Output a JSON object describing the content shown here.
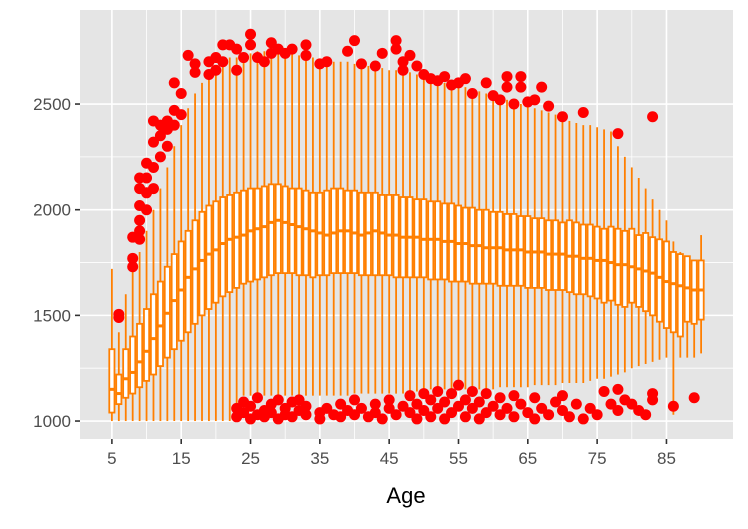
{
  "chart_data": {
    "type": "boxplot",
    "title": "",
    "xlabel": "Age",
    "ylabel": "",
    "xlim": [
      0.4,
      94.6
    ],
    "ylim": [
      915,
      2945
    ],
    "grid": true,
    "x_ticks": [
      5,
      15,
      25,
      35,
      45,
      55,
      65,
      75,
      85
    ],
    "y_ticks": [
      1000,
      1500,
      2000,
      2500
    ],
    "colors": {
      "box": "#FF7F00",
      "outlier": "#FF0000",
      "panel": "#E5E5E5",
      "grid": "#FFFFFF"
    },
    "ages": [
      5,
      6,
      7,
      8,
      9,
      10,
      11,
      12,
      13,
      14,
      15,
      16,
      17,
      18,
      19,
      20,
      21,
      22,
      23,
      24,
      25,
      26,
      27,
      28,
      29,
      30,
      31,
      32,
      33,
      34,
      35,
      36,
      37,
      38,
      39,
      40,
      41,
      42,
      43,
      44,
      45,
      46,
      47,
      48,
      49,
      50,
      51,
      52,
      53,
      54,
      55,
      56,
      57,
      58,
      59,
      60,
      61,
      62,
      63,
      64,
      65,
      66,
      67,
      68,
      69,
      70,
      71,
      72,
      73,
      74,
      75,
      76,
      77,
      78,
      79,
      80,
      81,
      82,
      83,
      84,
      85,
      86,
      87,
      88,
      89,
      90
    ],
    "whisker_low": [
      1000,
      1000,
      1000,
      1000,
      1000,
      1000,
      1000,
      1000,
      1000,
      1000,
      1000,
      1000,
      1000,
      1000,
      1000,
      1000,
      1000,
      1000,
      1080,
      1120,
      1120,
      1120,
      1120,
      1120,
      1120,
      1120,
      1120,
      1120,
      1120,
      1120,
      1120,
      1120,
      1120,
      1120,
      1120,
      1130,
      1130,
      1130,
      1130,
      1130,
      1130,
      1130,
      1130,
      1140,
      1140,
      1150,
      1150,
      1150,
      1150,
      1150,
      1150,
      1150,
      1150,
      1150,
      1150,
      1150,
      1160,
      1160,
      1160,
      1160,
      1160,
      1170,
      1170,
      1170,
      1170,
      1180,
      1180,
      1180,
      1180,
      1190,
      1200,
      1200,
      1210,
      1220,
      1230,
      1250,
      1260,
      1270,
      1280,
      1290,
      1300,
      1030,
      1300,
      1300,
      1300,
      1320
    ],
    "q1": [
      1040,
      1080,
      1110,
      1130,
      1160,
      1190,
      1220,
      1260,
      1300,
      1340,
      1380,
      1420,
      1460,
      1500,
      1530,
      1560,
      1590,
      1610,
      1630,
      1650,
      1660,
      1670,
      1680,
      1690,
      1700,
      1700,
      1700,
      1690,
      1690,
      1680,
      1690,
      1690,
      1700,
      1700,
      1700,
      1700,
      1690,
      1690,
      1690,
      1690,
      1690,
      1680,
      1680,
      1680,
      1680,
      1680,
      1670,
      1670,
      1670,
      1660,
      1660,
      1660,
      1650,
      1650,
      1650,
      1650,
      1640,
      1640,
      1640,
      1640,
      1630,
      1630,
      1630,
      1620,
      1620,
      1620,
      1610,
      1600,
      1600,
      1590,
      1580,
      1560,
      1570,
      1550,
      1540,
      1560,
      1540,
      1520,
      1500,
      1470,
      1440,
      1420,
      1400,
      1470,
      1460,
      1480
    ],
    "median": [
      1150,
      1130,
      1200,
      1230,
      1280,
      1330,
      1390,
      1450,
      1510,
      1570,
      1620,
      1680,
      1720,
      1760,
      1790,
      1810,
      1840,
      1860,
      1870,
      1880,
      1900,
      1910,
      1920,
      1940,
      1950,
      1940,
      1930,
      1920,
      1910,
      1900,
      1890,
      1880,
      1890,
      1900,
      1900,
      1890,
      1880,
      1890,
      1900,
      1890,
      1880,
      1880,
      1870,
      1870,
      1870,
      1860,
      1860,
      1860,
      1850,
      1850,
      1840,
      1840,
      1830,
      1830,
      1820,
      1820,
      1820,
      1810,
      1810,
      1810,
      1800,
      1800,
      1800,
      1790,
      1790,
      1790,
      1780,
      1780,
      1770,
      1770,
      1760,
      1760,
      1750,
      1740,
      1740,
      1730,
      1720,
      1710,
      1700,
      1680,
      1660,
      1650,
      1640,
      1630,
      1620,
      1620
    ],
    "q3": [
      1340,
      1220,
      1340,
      1400,
      1460,
      1530,
      1600,
      1660,
      1730,
      1790,
      1850,
      1900,
      1950,
      1990,
      2020,
      2040,
      2060,
      2070,
      2080,
      2090,
      2100,
      2100,
      2110,
      2120,
      2120,
      2110,
      2100,
      2100,
      2090,
      2080,
      2080,
      2090,
      2100,
      2100,
      2090,
      2090,
      2080,
      2080,
      2080,
      2070,
      2070,
      2070,
      2060,
      2060,
      2050,
      2050,
      2040,
      2040,
      2030,
      2030,
      2020,
      2010,
      2010,
      2000,
      2000,
      1990,
      1990,
      1980,
      1980,
      1970,
      1970,
      1960,
      1960,
      1950,
      1950,
      1940,
      1950,
      1940,
      1930,
      1930,
      1920,
      1910,
      1920,
      1910,
      1900,
      1910,
      1880,
      1890,
      1870,
      1860,
      1850,
      1800,
      1790,
      1780,
      1760,
      1760
    ],
    "whisker_high": [
      1720,
      1420,
      1600,
      1720,
      1800,
      1900,
      2000,
      2100,
      2200,
      2300,
      2400,
      2480,
      2550,
      2600,
      2640,
      2680,
      2700,
      2720,
      2720,
      2730,
      2740,
      2750,
      2750,
      2750,
      2750,
      2740,
      2740,
      2730,
      2720,
      2720,
      2710,
      2700,
      2700,
      2700,
      2700,
      2690,
      2680,
      2680,
      2670,
      2670,
      2660,
      2660,
      2650,
      2650,
      2640,
      2630,
      2620,
      2610,
      2600,
      2600,
      2590,
      2580,
      2570,
      2560,
      2550,
      2540,
      2530,
      2520,
      2510,
      2500,
      2490,
      2480,
      2470,
      2460,
      2450,
      2430,
      2420,
      2410,
      2400,
      2400,
      2390,
      2380,
      2370,
      2300,
      2250,
      2200,
      2150,
      2100,
      2050,
      2000,
      1950,
      1850,
      1800,
      1750,
      1760,
      1880
    ],
    "outliers": [
      [
        6,
        1490
      ],
      [
        6,
        1505
      ],
      [
        8,
        1730
      ],
      [
        8,
        1770
      ],
      [
        8,
        1870
      ],
      [
        9,
        1860
      ],
      [
        9,
        1900
      ],
      [
        9,
        1950
      ],
      [
        9,
        2020
      ],
      [
        9,
        2100
      ],
      [
        9,
        2150
      ],
      [
        10,
        2000
      ],
      [
        10,
        2080
      ],
      [
        10,
        2150
      ],
      [
        10,
        2220
      ],
      [
        11,
        2100
      ],
      [
        11,
        2200
      ],
      [
        11,
        2320
      ],
      [
        11,
        2420
      ],
      [
        12,
        2250
      ],
      [
        12,
        2350
      ],
      [
        12,
        2400
      ],
      [
        13,
        2300
      ],
      [
        13,
        2380
      ],
      [
        13,
        2420
      ],
      [
        14,
        2400
      ],
      [
        14,
        2470
      ],
      [
        14,
        2600
      ],
      [
        15,
        2450
      ],
      [
        15,
        2550
      ],
      [
        16,
        2730
      ],
      [
        17,
        2650
      ],
      [
        17,
        2690
      ],
      [
        19,
        2640
      ],
      [
        19,
        2700
      ],
      [
        20,
        2660
      ],
      [
        20,
        2720
      ],
      [
        21,
        2700
      ],
      [
        21,
        2780
      ],
      [
        22,
        2780
      ],
      [
        23,
        2660
      ],
      [
        23,
        2760
      ],
      [
        24,
        2720
      ],
      [
        25,
        2830
      ],
      [
        25,
        2780
      ],
      [
        26,
        2720
      ],
      [
        27,
        2700
      ],
      [
        28,
        2790
      ],
      [
        28,
        2740
      ],
      [
        29,
        2760
      ],
      [
        30,
        2740
      ],
      [
        31,
        2760
      ],
      [
        33,
        2730
      ],
      [
        33,
        2780
      ],
      [
        35,
        2690
      ],
      [
        36,
        2700
      ],
      [
        39,
        2750
      ],
      [
        40,
        2800
      ],
      [
        41,
        2690
      ],
      [
        43,
        2680
      ],
      [
        44,
        2740
      ],
      [
        46,
        2800
      ],
      [
        46,
        2760
      ],
      [
        47,
        2660
      ],
      [
        47,
        2700
      ],
      [
        48,
        2730
      ],
      [
        49,
        2680
      ],
      [
        50,
        2640
      ],
      [
        51,
        2620
      ],
      [
        52,
        2610
      ],
      [
        53,
        2630
      ],
      [
        54,
        2590
      ],
      [
        55,
        2600
      ],
      [
        56,
        2620
      ],
      [
        57,
        2550
      ],
      [
        59,
        2600
      ],
      [
        60,
        2540
      ],
      [
        61,
        2520
      ],
      [
        62,
        2630
      ],
      [
        62,
        2580
      ],
      [
        63,
        2500
      ],
      [
        64,
        2630
      ],
      [
        64,
        2580
      ],
      [
        65,
        2510
      ],
      [
        66,
        2520
      ],
      [
        67,
        2580
      ],
      [
        68,
        2490
      ],
      [
        70,
        2440
      ],
      [
        73,
        2460
      ],
      [
        78,
        2360
      ],
      [
        83,
        2440
      ],
      [
        23,
        1020
      ],
      [
        23,
        1060
      ],
      [
        24,
        1040
      ],
      [
        24,
        1090
      ],
      [
        25,
        1010
      ],
      [
        25,
        1070
      ],
      [
        26,
        1030
      ],
      [
        26,
        1110
      ],
      [
        27,
        1050
      ],
      [
        27,
        1020
      ],
      [
        28,
        1080
      ],
      [
        28,
        1040
      ],
      [
        29,
        1100
      ],
      [
        29,
        1010
      ],
      [
        30,
        1060
      ],
      [
        30,
        1030
      ],
      [
        31,
        1090
      ],
      [
        31,
        1020
      ],
      [
        32,
        1050
      ],
      [
        32,
        1100
      ],
      [
        33,
        1030
      ],
      [
        33,
        1070
      ],
      [
        35,
        1040
      ],
      [
        35,
        1010
      ],
      [
        36,
        1060
      ],
      [
        37,
        1030
      ],
      [
        38,
        1080
      ],
      [
        38,
        1020
      ],
      [
        39,
        1050
      ],
      [
        40,
        1100
      ],
      [
        40,
        1030
      ],
      [
        41,
        1060
      ],
      [
        42,
        1020
      ],
      [
        43,
        1080
      ],
      [
        43,
        1040
      ],
      [
        44,
        1010
      ],
      [
        45,
        1060
      ],
      [
        45,
        1100
      ],
      [
        46,
        1030
      ],
      [
        47,
        1070
      ],
      [
        48,
        1120
      ],
      [
        48,
        1040
      ],
      [
        49,
        1080
      ],
      [
        49,
        1010
      ],
      [
        50,
        1130
      ],
      [
        50,
        1050
      ],
      [
        51,
        1100
      ],
      [
        51,
        1020
      ],
      [
        52,
        1060
      ],
      [
        52,
        1140
      ],
      [
        53,
        1090
      ],
      [
        53,
        1010
      ],
      [
        54,
        1130
      ],
      [
        54,
        1040
      ],
      [
        55,
        1170
      ],
      [
        55,
        1070
      ],
      [
        56,
        1100
      ],
      [
        56,
        1020
      ],
      [
        57,
        1140
      ],
      [
        57,
        1060
      ],
      [
        58,
        1090
      ],
      [
        58,
        1010
      ],
      [
        59,
        1130
      ],
      [
        59,
        1040
      ],
      [
        60,
        1070
      ],
      [
        61,
        1110
      ],
      [
        61,
        1030
      ],
      [
        62,
        1060
      ],
      [
        63,
        1120
      ],
      [
        63,
        1020
      ],
      [
        64,
        1080
      ],
      [
        65,
        1040
      ],
      [
        66,
        1110
      ],
      [
        66,
        1010
      ],
      [
        67,
        1060
      ],
      [
        68,
        1030
      ],
      [
        69,
        1090
      ],
      [
        70,
        1050
      ],
      [
        70,
        1120
      ],
      [
        71,
        1020
      ],
      [
        72,
        1080
      ],
      [
        73,
        1010
      ],
      [
        74,
        1060
      ],
      [
        75,
        1030
      ],
      [
        76,
        1140
      ],
      [
        77,
        1080
      ],
      [
        78,
        1150
      ],
      [
        78,
        1050
      ],
      [
        79,
        1100
      ],
      [
        80,
        1080
      ],
      [
        81,
        1050
      ],
      [
        82,
        1030
      ],
      [
        83,
        1130
      ],
      [
        83,
        1100
      ],
      [
        86,
        1070
      ],
      [
        89,
        1110
      ]
    ]
  }
}
